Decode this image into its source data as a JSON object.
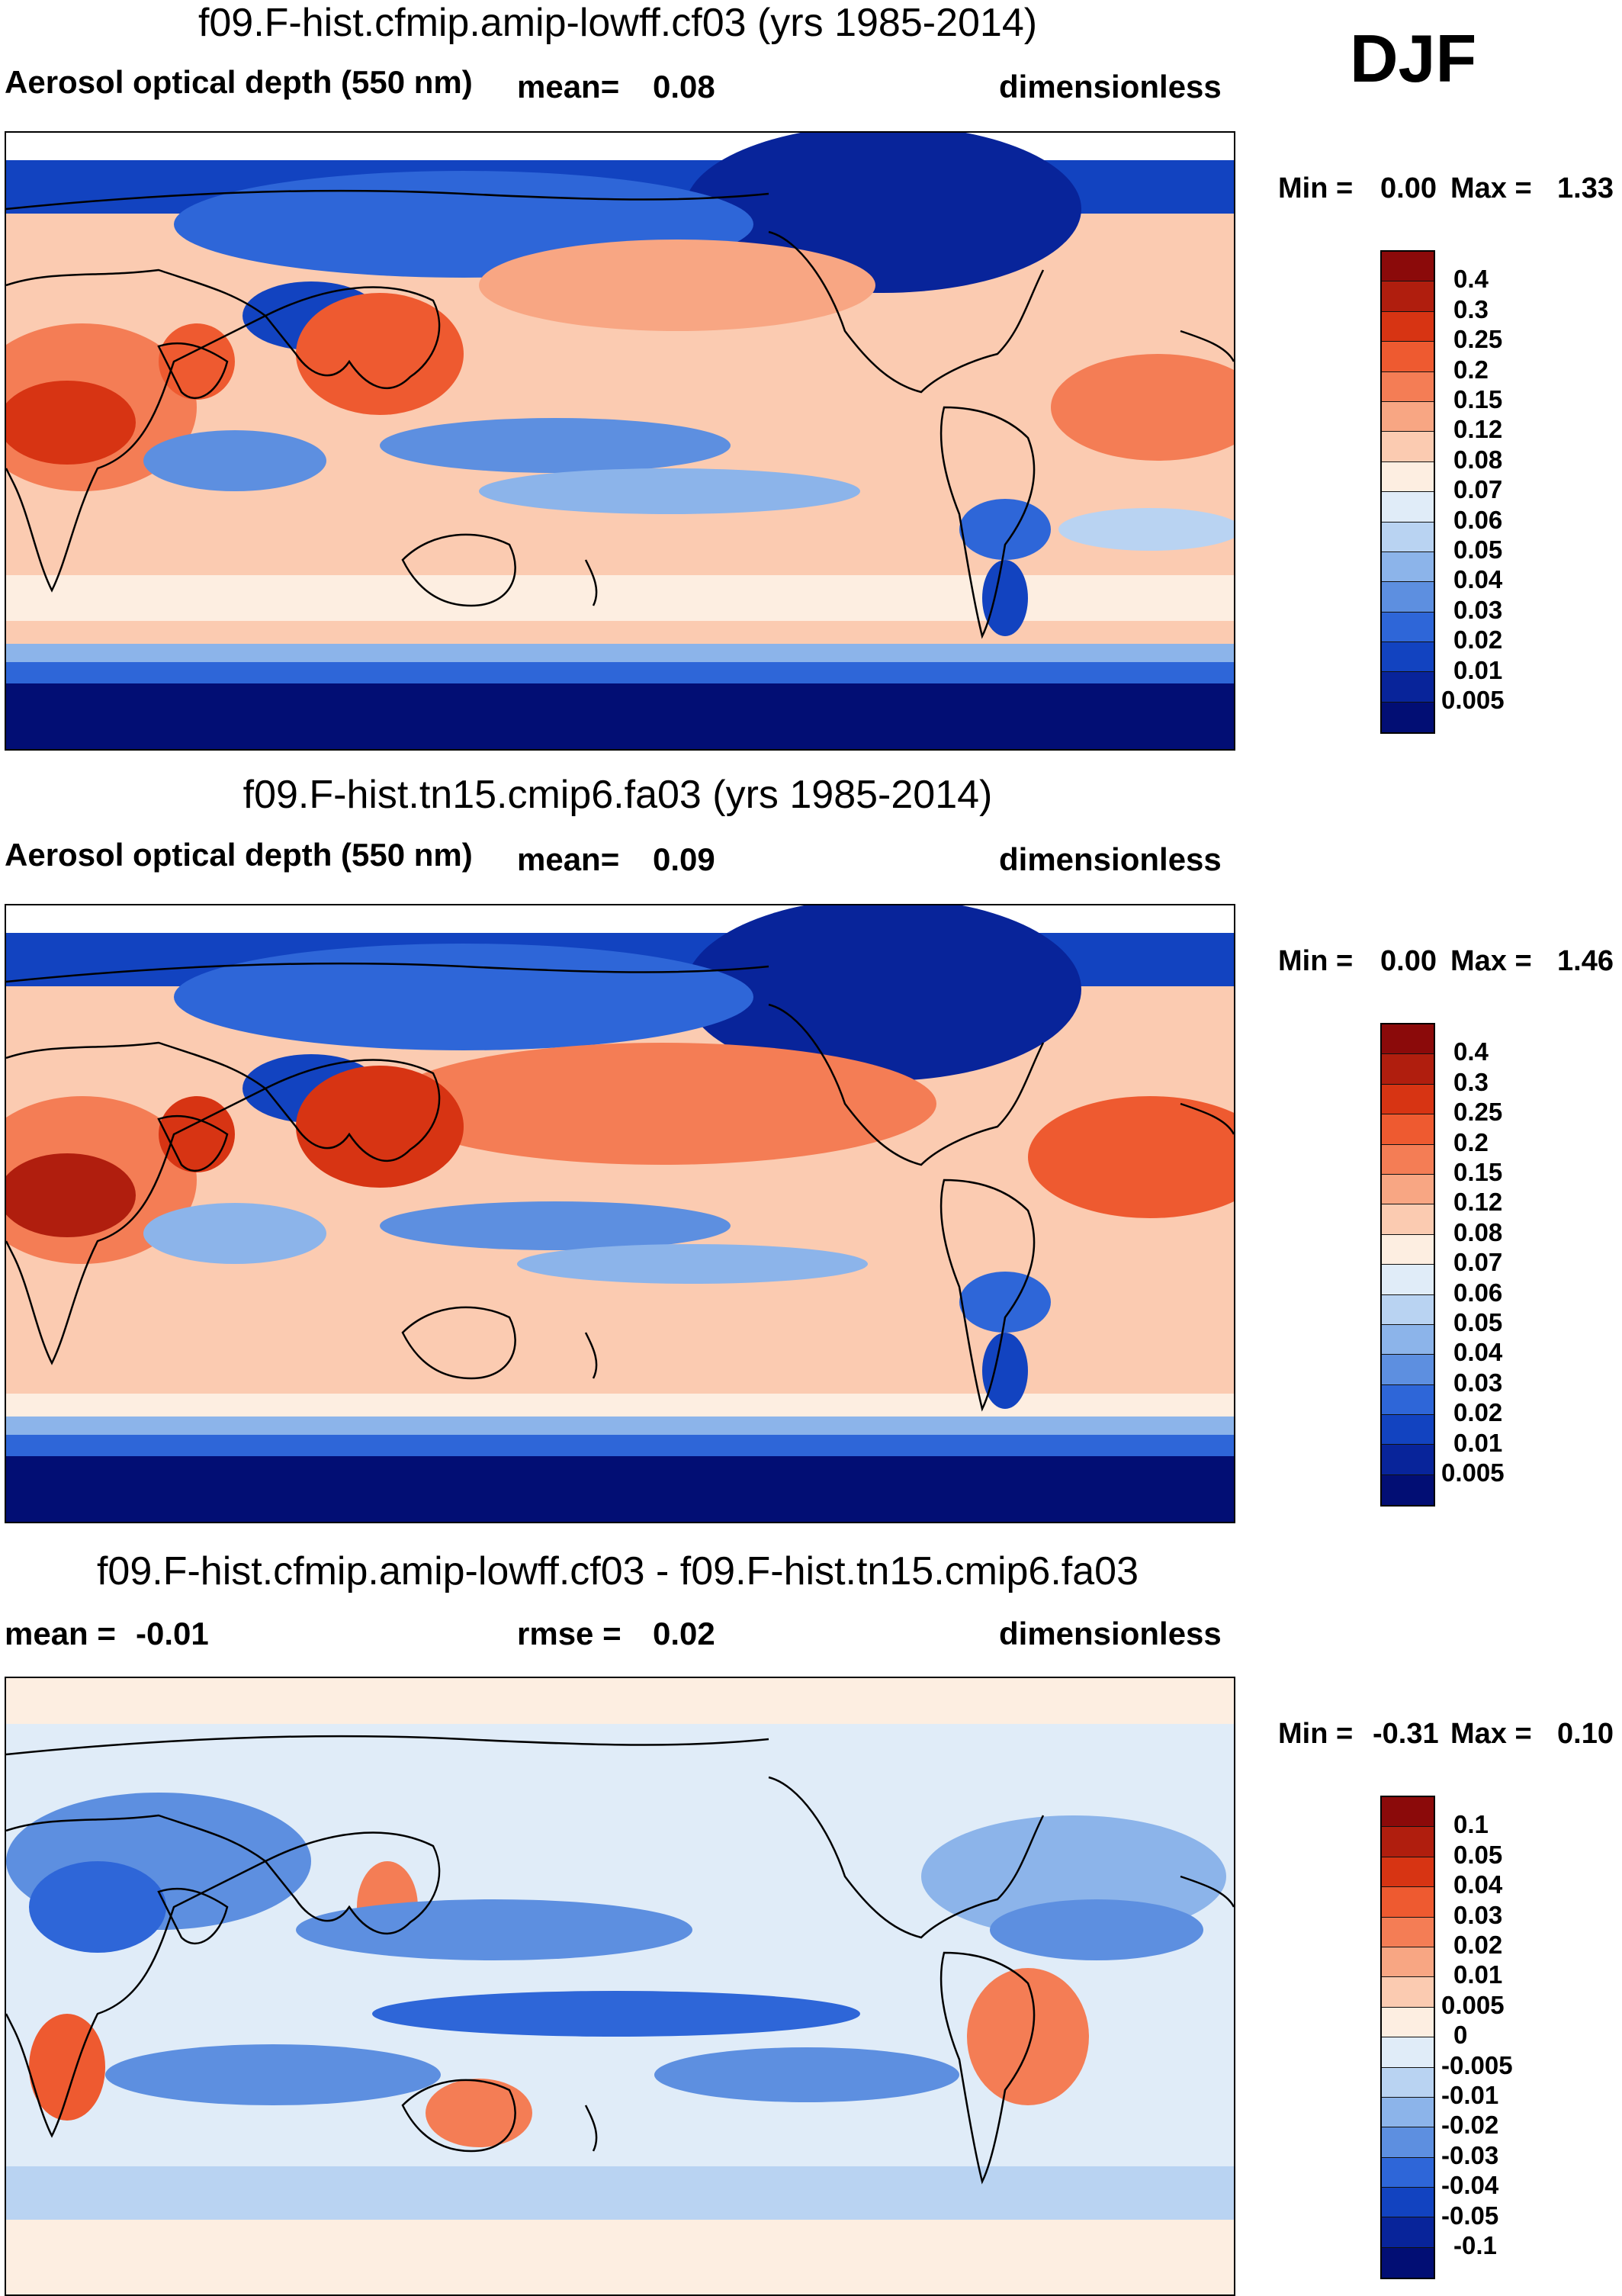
{
  "season": "DJF",
  "panels": [
    {
      "title": "f09.F-hist.cfmip.amip-lowff.cf03 (yrs 1985-2014)",
      "left_label": "Aerosol optical depth (550 nm)",
      "stat_label": "mean=",
      "stat_value": "0.08",
      "units": "dimensionless",
      "min_label": "Min =",
      "min_value": "0.00",
      "max_label": "Max =",
      "max_value": "1.33",
      "legend_colors": [
        "#8b0a0a",
        "#b01e0e",
        "#d73413",
        "#ee5a30",
        "#f47d55",
        "#f8a683",
        "#fbcbb1",
        "#fdeee1",
        "#e0ecf8",
        "#b9d3f2",
        "#8cb4ea",
        "#5d8fe0",
        "#2e66d8",
        "#1243c0",
        "#08249a",
        "#020e74"
      ],
      "legend_labels": [
        "0.4",
        "0.3",
        "0.25",
        "0.2",
        "0.15",
        "0.12",
        "0.08",
        "0.07",
        "0.06",
        "0.05",
        "0.04",
        "0.03",
        "0.02",
        "0.01",
        "0.005"
      ]
    },
    {
      "title": "f09.F-hist.tn15.cmip6.fa03 (yrs 1985-2014)",
      "left_label": "Aerosol optical depth (550 nm)",
      "stat_label": "mean=",
      "stat_value": "0.09",
      "units": "dimensionless",
      "min_label": "Min =",
      "min_value": "0.00",
      "max_label": "Max =",
      "max_value": "1.46",
      "legend_colors": [
        "#8b0a0a",
        "#b01e0e",
        "#d73413",
        "#ee5a30",
        "#f47d55",
        "#f8a683",
        "#fbcbb1",
        "#fdeee1",
        "#e0ecf8",
        "#b9d3f2",
        "#8cb4ea",
        "#5d8fe0",
        "#2e66d8",
        "#1243c0",
        "#08249a",
        "#020e74"
      ],
      "legend_labels": [
        "0.4",
        "0.3",
        "0.25",
        "0.2",
        "0.15",
        "0.12",
        "0.08",
        "0.07",
        "0.06",
        "0.05",
        "0.04",
        "0.03",
        "0.02",
        "0.01",
        "0.005"
      ]
    },
    {
      "title": "f09.F-hist.cfmip.amip-lowff.cf03 - f09.F-hist.tn15.cmip6.fa03",
      "left_label": "mean =",
      "left_value": "-0.01",
      "stat_label": "rmse =",
      "stat_value": "0.02",
      "units": "dimensionless",
      "min_label": "Min =",
      "min_value": "-0.31",
      "max_label": "Max =",
      "max_value": "0.10",
      "legend_colors": [
        "#8b0a0a",
        "#b01e0e",
        "#d73413",
        "#ee5a30",
        "#f47d55",
        "#f8a683",
        "#fbcbb1",
        "#fdeee1",
        "#e0ecf8",
        "#b9d3f2",
        "#8cb4ea",
        "#5d8fe0",
        "#2e66d8",
        "#1243c0",
        "#08249a",
        "#020e74"
      ],
      "legend_labels": [
        "0.1",
        "0.05",
        "0.04",
        "0.03",
        "0.02",
        "0.01",
        "0.005",
        "0",
        "-0.005",
        "-0.01",
        "-0.02",
        "-0.03",
        "-0.04",
        "-0.05",
        "-0.1"
      ]
    }
  ]
}
